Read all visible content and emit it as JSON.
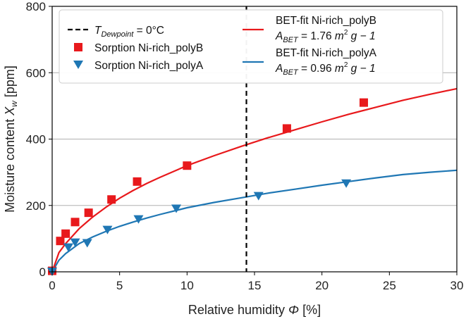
{
  "chart_data": {
    "type": "scatter",
    "xlabel": "Relative humidity",
    "xlabel_symbol": "Φ",
    "xlabel_unit": "[%]",
    "ylabel": "Moisture content",
    "ylabel_symbol": "X",
    "ylabel_subscript": "w",
    "ylabel_unit": "[ppm]",
    "xlim": [
      0,
      30
    ],
    "ylim": [
      0,
      800
    ],
    "xticks": [
      0,
      5,
      10,
      15,
      20,
      25,
      30
    ],
    "yticks": [
      0,
      200,
      400,
      600,
      800
    ],
    "grid": "horizontal",
    "legend_placement": "top",
    "dewpoint": {
      "x": 14.4,
      "label_prefix": "T",
      "label_sub": "Dewpoint",
      "label_suffix": " = 0°C",
      "color": "#000000"
    },
    "series": [
      {
        "name": "Sorption Ni-rich_polyB",
        "kind": "points",
        "marker": "square",
        "color": "#e8191c",
        "x": [
          0.0,
          0.6,
          1.0,
          1.7,
          2.7,
          4.4,
          6.3,
          10.0,
          17.4,
          23.1
        ],
        "y": [
          3,
          93,
          115,
          150,
          178,
          218,
          272,
          320,
          432,
          510
        ]
      },
      {
        "name": "Sorption Ni-rich_polyA",
        "kind": "points",
        "marker": "triangle-down",
        "color": "#1f77b4",
        "x": [
          0.0,
          1.2,
          1.7,
          2.6,
          4.1,
          6.4,
          9.2,
          15.3,
          21.8
        ],
        "y": [
          2,
          75,
          90,
          88,
          128,
          160,
          192,
          230,
          268
        ]
      },
      {
        "name": "BET-fit Ni-rich_polyB",
        "kind": "fit",
        "color": "#e8191c",
        "area_label": "A",
        "area_sub": "BET",
        "area_value": " = 1.76 ",
        "area_unit": "m",
        "area_unit_sup": "2",
        "area_unit_rest": " g − 1",
        "x": [
          0,
          0.5,
          1,
          2,
          3,
          4,
          5,
          6,
          7,
          8,
          10,
          12,
          14,
          16,
          18,
          20,
          22,
          24,
          26,
          28,
          30
        ],
        "y": [
          0,
          58,
          85,
          130,
          165,
          195,
          222,
          245,
          266,
          285,
          320,
          350,
          378,
          404,
          428,
          452,
          475,
          496,
          517,
          535,
          552
        ]
      },
      {
        "name": "BET-fit Ni-rich_polyA",
        "kind": "fit",
        "color": "#1f77b4",
        "area_label": "A",
        "area_sub": "BET",
        "area_value": " = 0.96 ",
        "area_unit": "m",
        "area_unit_sup": "2",
        "area_unit_rest": " g − 1",
        "x": [
          0,
          0.5,
          1,
          2,
          3,
          4,
          5,
          6,
          7,
          8,
          10,
          12,
          14,
          16,
          18,
          20,
          22,
          24,
          26,
          28,
          30
        ],
        "y": [
          0,
          35,
          55,
          85,
          105,
          122,
          137,
          150,
          162,
          173,
          193,
          209,
          223,
          237,
          249,
          261,
          272,
          283,
          293,
          300,
          306
        ]
      }
    ]
  }
}
